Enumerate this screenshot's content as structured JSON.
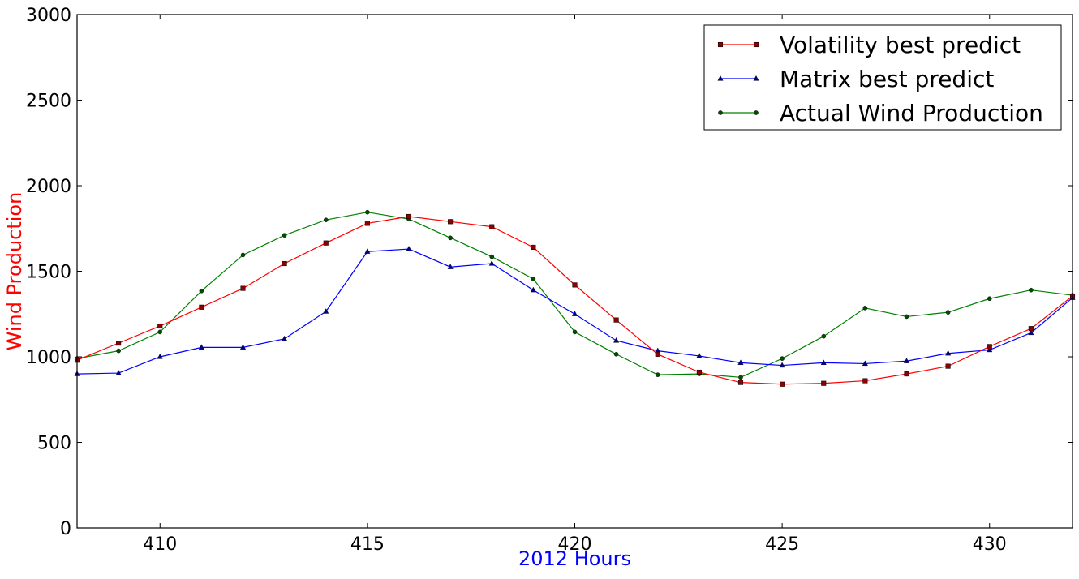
{
  "chart_data": {
    "type": "line",
    "title": "",
    "xlabel": "2012 Hours",
    "ylabel": "Wind Production",
    "xlim": [
      408,
      432
    ],
    "ylim": [
      0,
      3000
    ],
    "x_ticks": [
      410,
      415,
      420,
      425,
      430
    ],
    "y_ticks": [
      0,
      500,
      1000,
      1500,
      2000,
      2500,
      3000
    ],
    "x": [
      408,
      409,
      410,
      411,
      412,
      413,
      414,
      415,
      416,
      417,
      418,
      419,
      420,
      421,
      422,
      423,
      424,
      425,
      426,
      427,
      428,
      429,
      430,
      431,
      432
    ],
    "grid": false,
    "legend_position": "top-right",
    "colors": {
      "xlabel": "#0000ff",
      "ylabel": "#ff0000"
    },
    "series": [
      {
        "name": "Volatility best predict",
        "color": "#ff0000",
        "marker": "square",
        "marker_color": "#8b0000",
        "values": [
          980,
          1080,
          1180,
          1290,
          1400,
          1545,
          1665,
          1780,
          1820,
          1790,
          1760,
          1640,
          1420,
          1215,
          1015,
          910,
          850,
          840,
          845,
          860,
          900,
          945,
          1060,
          1165,
          1355
        ]
      },
      {
        "name": "Matrix best predict",
        "color": "#0000ff",
        "marker": "triangle",
        "marker_color": "#00008b",
        "values": [
          900,
          905,
          1000,
          1055,
          1055,
          1105,
          1265,
          1615,
          1630,
          1525,
          1545,
          1390,
          1250,
          1095,
          1035,
          1005,
          965,
          950,
          965,
          960,
          975,
          1020,
          1040,
          1140,
          1345
        ]
      },
      {
        "name": "Actual Wind Production",
        "color": "#008000",
        "marker": "circle",
        "marker_color": "#004d00",
        "values": [
          990,
          1035,
          1145,
          1385,
          1595,
          1710,
          1800,
          1845,
          1805,
          1695,
          1585,
          1455,
          1145,
          1015,
          895,
          900,
          880,
          990,
          1120,
          1285,
          1235,
          1260,
          1340,
          1390,
          1360
        ]
      }
    ]
  }
}
